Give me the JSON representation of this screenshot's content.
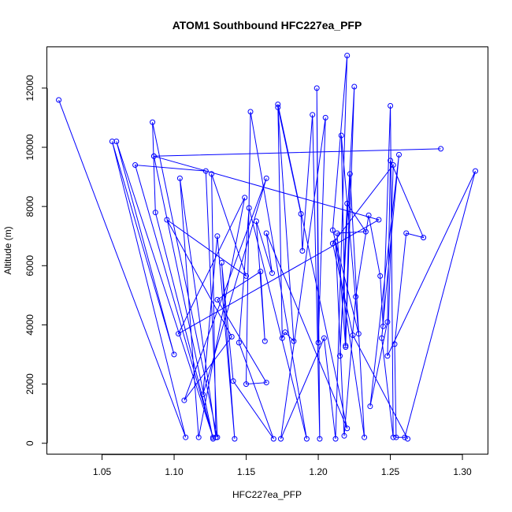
{
  "chart_data": {
    "type": "line",
    "title": "ATOM1 Southbound HFC227ea_PFP",
    "xlabel": "HFC227ea_PFP",
    "ylabel": "Altitude (m)",
    "xlim": [
      1.012,
      1.318
    ],
    "ylim": [
      -380,
      13380
    ],
    "xticks": [
      1.05,
      1.1,
      1.15,
      1.2,
      1.25,
      1.3
    ],
    "xtick_labels": [
      "1.05",
      "1.10",
      "1.15",
      "1.20",
      "1.25",
      "1.30"
    ],
    "yticks": [
      0,
      2000,
      4000,
      6000,
      8000,
      10000,
      12000
    ],
    "ytick_labels": [
      "0",
      "2000",
      "4000",
      "6000",
      "8000",
      "10000",
      "12000"
    ],
    "grid": false,
    "markers": "open-circle",
    "colors": {
      "series": "#0000ff",
      "axes": "#000000"
    },
    "series": [
      {
        "points": [
          [
            1.02,
            11600
          ],
          [
            1.108,
            200
          ],
          [
            1.057,
            10200
          ],
          [
            1.1,
            3000
          ],
          [
            1.06,
            10200
          ],
          [
            1.127,
            200
          ],
          [
            1.073,
            9400
          ],
          [
            1.122,
            9200
          ],
          [
            1.13,
            200
          ],
          [
            1.085,
            10850
          ],
          [
            1.087,
            7800
          ],
          [
            1.127,
            150
          ],
          [
            1.086,
            9700
          ],
          [
            1.285,
            9950
          ],
          [
            1.086,
            9700
          ],
          [
            1.242,
            7550
          ],
          [
            1.103,
            3700
          ],
          [
            1.149,
            8300
          ],
          [
            1.117,
            200
          ],
          [
            1.104,
            8950
          ],
          [
            1.129,
            200
          ],
          [
            1.126,
            9100
          ],
          [
            1.15,
            5650
          ],
          [
            1.095,
            7550
          ],
          [
            1.14,
            3600
          ],
          [
            1.107,
            1450
          ],
          [
            1.164,
            8950
          ],
          [
            1.12,
            1650
          ],
          [
            1.13,
            7000
          ],
          [
            1.142,
            150
          ],
          [
            1.133,
            6100
          ],
          [
            1.141,
            2100
          ],
          [
            1.169,
            150
          ],
          [
            1.145,
            3400
          ],
          [
            1.152,
            7950
          ],
          [
            1.192,
            150
          ],
          [
            1.153,
            11200
          ],
          [
            1.15,
            2000
          ],
          [
            1.164,
            2050
          ],
          [
            1.13,
            4850
          ],
          [
            1.16,
            5800
          ],
          [
            1.163,
            3450
          ],
          [
            1.157,
            7500
          ],
          [
            1.168,
            5750
          ],
          [
            1.164,
            7100
          ],
          [
            1.22,
            500
          ],
          [
            1.172,
            11450
          ],
          [
            1.175,
            3550
          ],
          [
            1.177,
            3750
          ],
          [
            1.183,
            3450
          ],
          [
            1.172,
            11350
          ],
          [
            1.188,
            7750
          ],
          [
            1.189,
            6500
          ],
          [
            1.196,
            11100
          ],
          [
            1.201,
            150
          ],
          [
            1.199,
            12000
          ],
          [
            1.2,
            3400
          ],
          [
            1.205,
            11000
          ],
          [
            1.174,
            150
          ],
          [
            1.204,
            3550
          ],
          [
            1.212,
            150
          ],
          [
            1.22,
            13100
          ],
          [
            1.21,
            7200
          ],
          [
            1.228,
            3700
          ],
          [
            1.216,
            10400
          ],
          [
            1.219,
            3300
          ],
          [
            1.225,
            12050
          ],
          [
            1.215,
            2950
          ],
          [
            1.22,
            8100
          ],
          [
            1.233,
            7150
          ],
          [
            1.213,
            7100
          ],
          [
            1.219,
            3250
          ],
          [
            1.222,
            9100
          ],
          [
            1.232,
            200
          ],
          [
            1.212,
            6800
          ],
          [
            1.218,
            250
          ],
          [
            1.226,
            4950
          ],
          [
            1.235,
            7700
          ],
          [
            1.243,
            5650
          ],
          [
            1.245,
            3950
          ],
          [
            1.25,
            11400
          ],
          [
            1.252,
            200
          ],
          [
            1.244,
            3550
          ],
          [
            1.256,
            9750
          ],
          [
            1.236,
            1250
          ],
          [
            1.248,
            4100
          ],
          [
            1.25,
            9550
          ],
          [
            1.273,
            6950
          ],
          [
            1.261,
            7100
          ],
          [
            1.253,
            3350
          ],
          [
            1.254,
            200
          ],
          [
            1.26,
            200
          ],
          [
            1.309,
            9200
          ],
          [
            1.248,
            2950
          ],
          [
            1.252,
            9400
          ],
          [
            1.21,
            6750
          ],
          [
            1.224,
            3650
          ],
          [
            1.262,
            150
          ]
        ]
      }
    ]
  }
}
